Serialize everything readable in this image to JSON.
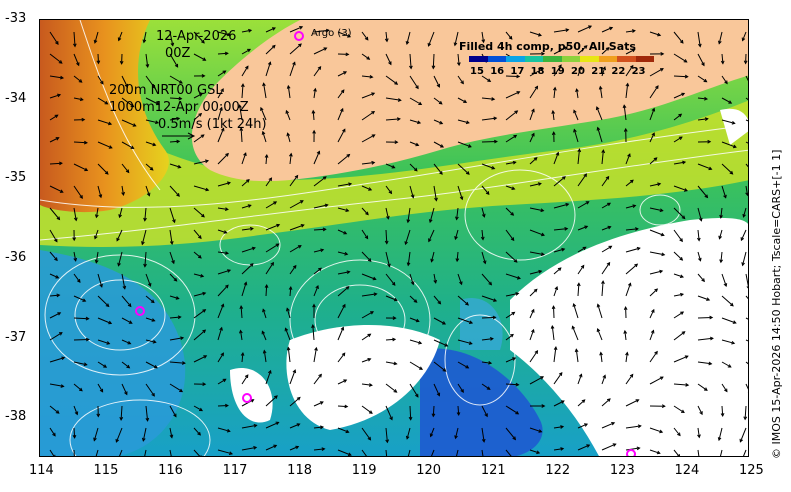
{
  "map": {
    "date": "12-Apr-2026",
    "time": "00Z",
    "depth_line1": "200m  NRT00 GSL",
    "depth_line2": "1000m12-Apr 00:00Z",
    "velocity_scale": "0.5m/s (1kt 24h)",
    "argo_legend": "Argo (3)",
    "credit": "© IMOS 15-Apr-2026 14:50 Hobart; Tscale=CARS+[-1 1]",
    "colorbar": {
      "title": "Filled 4h comp, p50, All Sats",
      "ticks": [
        "15",
        "16",
        "17",
        "18",
        "19",
        "20",
        "21",
        "22",
        "23"
      ],
      "colors": [
        "#00008b",
        "#0050d8",
        "#0aa4e6",
        "#19c4a0",
        "#3cb43c",
        "#8cd23c",
        "#e8e614",
        "#f0a01e",
        "#d2501e",
        "#a0280a"
      ]
    },
    "x_ticks": [
      "114",
      "115",
      "116",
      "117",
      "118",
      "119",
      "120",
      "121",
      "122",
      "123",
      "124",
      "125"
    ],
    "y_ticks": [
      "-33",
      "-34",
      "-35",
      "-36",
      "-37",
      "-38"
    ],
    "x_range": [
      114,
      125
    ],
    "y_range": [
      -38.5,
      -33
    ],
    "argo_floats": [
      {
        "lon": 115.55,
        "lat": -36.65
      },
      {
        "lon": 117.2,
        "lat": -37.75
      },
      {
        "lon": 123.15,
        "lat": -38.45
      }
    ],
    "land_color": "#f9c79a",
    "argo_color": "#ff00ff"
  }
}
